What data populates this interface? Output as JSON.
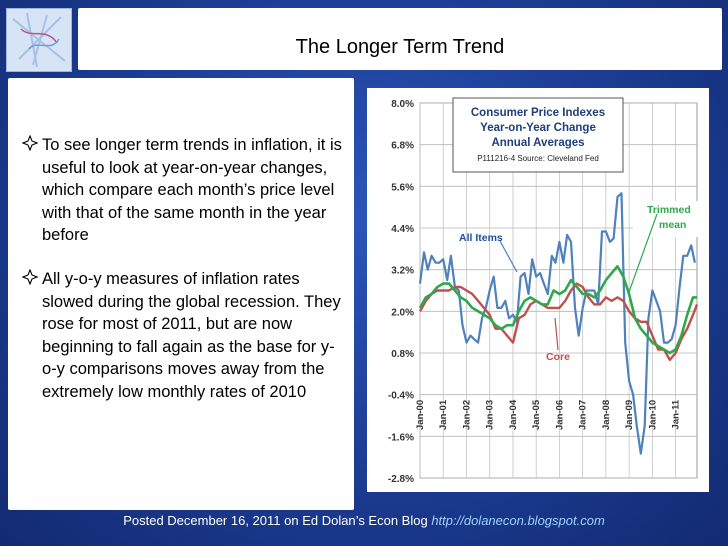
{
  "slide": {
    "title": "The Longer Term Trend",
    "bullets": [
      "To see longer term trends in inflation, it is useful to look at year-on-year changes, which compare each month’s price level with that of the same month in the year before",
      "All y-o-y measures of inflation rates slowed during the global recession. They rose for most of 2011, but are now beginning to fall again as the base for y-o-y comparisons moves away from the extremely low monthly rates of 2010"
    ],
    "footer_text": "Posted December 16, 2011 on Ed Dolan’s Econ Blog",
    "footer_link": "http://dolanecon.blogspot.com"
  },
  "chart_data": {
    "type": "line",
    "title": "Consumer Price Indexes",
    "subtitle": "Year-on-Year Change",
    "subtitle2": "Annual Averages",
    "source": "P111216-4 Source: Cleveland Fed",
    "yticks": [
      "8.0%",
      "6.8%",
      "5.6%",
      "4.4%",
      "3.2%",
      "2.0%",
      "0.8%",
      "-0.4%",
      "-1.6%",
      "-2.8%"
    ],
    "ylim": [
      -2.8,
      8.0
    ],
    "xticks": [
      "Jan-00",
      "Jan-01",
      "Jan-02",
      "Jan-03",
      "Jan-04",
      "Jan-05",
      "Jan-06",
      "Jan-07",
      "Jan-08",
      "Jan-09",
      "Jan-10",
      "Jan-11"
    ],
    "xlim": [
      2000.0,
      2011.92
    ],
    "grid": true,
    "annotations": {
      "all_items": "All Items",
      "core": "Core",
      "trimmed_1": "Trimmed",
      "trimmed_2": "mean"
    },
    "colors": {
      "all_items": "#4f81bd",
      "core": "#c0504d",
      "trimmed": "#2ea84b",
      "label": "#1f4e9c"
    },
    "series": [
      {
        "name": "All Items",
        "x": [
          2000.0,
          2000.17,
          2000.33,
          2000.5,
          2000.67,
          2000.83,
          2001.0,
          2001.17,
          2001.33,
          2001.5,
          2001.67,
          2001.83,
          2002.0,
          2002.17,
          2002.33,
          2002.5,
          2002.67,
          2002.83,
          2003.0,
          2003.17,
          2003.33,
          2003.5,
          2003.67,
          2003.83,
          2004.0,
          2004.17,
          2004.33,
          2004.5,
          2004.67,
          2004.83,
          2005.0,
          2005.17,
          2005.33,
          2005.5,
          2005.67,
          2005.83,
          2006.0,
          2006.17,
          2006.33,
          2006.5,
          2006.67,
          2006.83,
          2007.0,
          2007.17,
          2007.33,
          2007.5,
          2007.67,
          2007.83,
          2008.0,
          2008.17,
          2008.33,
          2008.5,
          2008.67,
          2008.83,
          2009.0,
          2009.17,
          2009.33,
          2009.5,
          2009.67,
          2009.83,
          2010.0,
          2010.17,
          2010.33,
          2010.5,
          2010.67,
          2010.83,
          2011.0,
          2011.17,
          2011.33,
          2011.5,
          2011.67,
          2011.83
        ],
        "values": [
          2.8,
          3.7,
          3.2,
          3.6,
          3.4,
          3.4,
          3.5,
          2.9,
          3.6,
          2.7,
          2.6,
          1.6,
          1.1,
          1.3,
          1.2,
          1.1,
          1.8,
          2.1,
          2.6,
          3.0,
          2.1,
          2.1,
          2.3,
          1.8,
          1.9,
          1.7,
          3.0,
          3.1,
          2.5,
          3.5,
          3.0,
          3.1,
          2.8,
          2.5,
          3.6,
          3.4,
          4.0,
          3.4,
          4.2,
          4.0,
          2.1,
          1.3,
          2.1,
          2.6,
          2.6,
          2.6,
          2.2,
          4.3,
          4.3,
          4.0,
          4.1,
          5.3,
          5.4,
          1.1,
          0.0,
          -0.4,
          -1.3,
          -2.1,
          -1.3,
          1.8,
          2.6,
          2.3,
          2.0,
          1.1,
          1.1,
          1.2,
          1.6,
          2.7,
          3.6,
          3.6,
          3.9,
          3.4
        ]
      },
      {
        "name": "Core",
        "x": [
          2000.0,
          2000.25,
          2000.5,
          2000.75,
          2001.0,
          2001.25,
          2001.5,
          2001.75,
          2002.0,
          2002.25,
          2002.5,
          2002.75,
          2003.0,
          2003.25,
          2003.5,
          2003.75,
          2004.0,
          2004.25,
          2004.5,
          2004.75,
          2005.0,
          2005.25,
          2005.5,
          2005.75,
          2006.0,
          2006.25,
          2006.5,
          2006.75,
          2007.0,
          2007.25,
          2007.5,
          2007.75,
          2008.0,
          2008.25,
          2008.5,
          2008.75,
          2009.0,
          2009.25,
          2009.5,
          2009.75,
          2010.0,
          2010.25,
          2010.5,
          2010.75,
          2011.0,
          2011.25,
          2011.5,
          2011.75,
          2011.92
        ],
        "values": [
          2.0,
          2.3,
          2.5,
          2.6,
          2.6,
          2.6,
          2.7,
          2.7,
          2.6,
          2.5,
          2.3,
          2.1,
          1.9,
          1.5,
          1.5,
          1.3,
          1.1,
          1.8,
          1.9,
          2.2,
          2.3,
          2.2,
          2.1,
          2.1,
          2.1,
          2.3,
          2.6,
          2.8,
          2.7,
          2.4,
          2.2,
          2.2,
          2.4,
          2.3,
          2.4,
          2.3,
          2.0,
          1.8,
          1.7,
          1.7,
          1.3,
          0.9,
          0.9,
          0.6,
          0.8,
          1.2,
          1.5,
          1.9,
          2.2
        ]
      },
      {
        "name": "Trimmed mean",
        "x": [
          2000.0,
          2000.25,
          2000.5,
          2000.75,
          2001.0,
          2001.25,
          2001.5,
          2001.75,
          2002.0,
          2002.25,
          2002.5,
          2002.75,
          2003.0,
          2003.25,
          2003.5,
          2003.75,
          2004.0,
          2004.25,
          2004.5,
          2004.75,
          2005.0,
          2005.25,
          2005.5,
          2005.75,
          2006.0,
          2006.25,
          2006.5,
          2006.75,
          2007.0,
          2007.25,
          2007.5,
          2007.75,
          2008.0,
          2008.25,
          2008.5,
          2008.75,
          2009.0,
          2009.25,
          2009.5,
          2009.75,
          2010.0,
          2010.25,
          2010.5,
          2010.75,
          2011.0,
          2011.25,
          2011.5,
          2011.75,
          2011.92
        ],
        "values": [
          2.1,
          2.4,
          2.5,
          2.7,
          2.8,
          2.8,
          2.6,
          2.4,
          2.3,
          2.1,
          2.0,
          1.9,
          1.8,
          1.6,
          1.5,
          1.6,
          1.6,
          2.0,
          2.3,
          2.4,
          2.3,
          2.2,
          2.2,
          2.6,
          2.5,
          2.6,
          2.9,
          2.7,
          2.5,
          2.5,
          2.4,
          2.6,
          2.9,
          3.1,
          3.3,
          3.0,
          2.5,
          1.8,
          1.5,
          1.3,
          1.1,
          1.0,
          0.9,
          0.8,
          0.9,
          1.3,
          1.9,
          2.4,
          2.4
        ]
      }
    ]
  }
}
